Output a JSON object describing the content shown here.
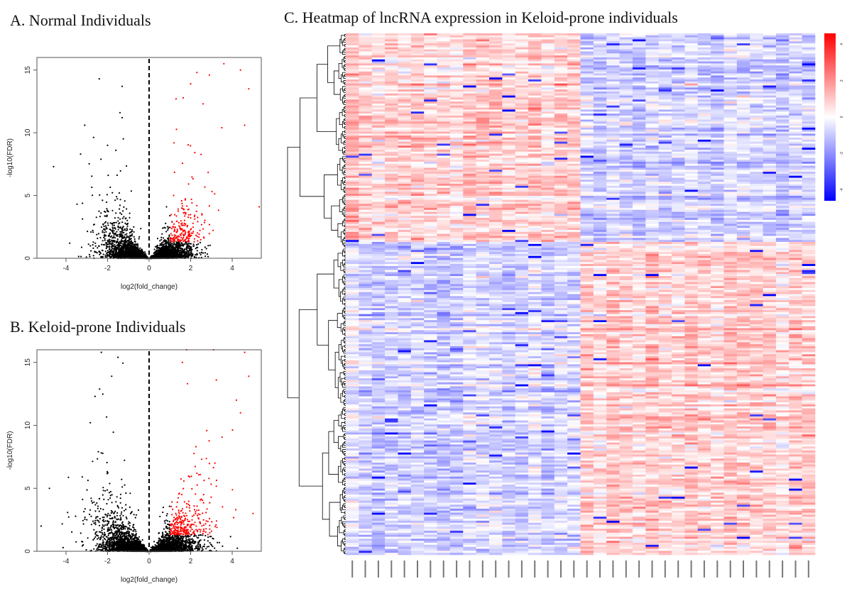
{
  "panels": {
    "a_title": "A.  Normal Individuals",
    "b_title": "B.  Keloid-prone Individuals",
    "c_title": "C.  Heatmap of lncRNA expression in Keloid-prone individuals"
  },
  "chart_data": [
    {
      "type": "scatter",
      "panel": "A",
      "title": "Normal Individuals",
      "xlabel": "log2(fold_change)",
      "ylabel": "-log10(FDR)",
      "xlim": [
        -5.4,
        5.4
      ],
      "ylim": [
        0,
        16
      ],
      "xticks": [
        "-4",
        "-2",
        "0",
        "2",
        "4"
      ],
      "yticks": [
        "0",
        "5",
        "10",
        "15"
      ],
      "vline": 0,
      "colors": {
        "not_significant": "#000000",
        "up_significant": "#ff0000"
      },
      "notable_points": [
        {
          "x": -2.4,
          "y": 14.3,
          "sig": false
        },
        {
          "x": -1.3,
          "y": 13.7,
          "sig": false
        },
        {
          "x": -1.4,
          "y": 11.6,
          "sig": false
        },
        {
          "x": -1.3,
          "y": 11.2,
          "sig": false
        },
        {
          "x": -3.1,
          "y": 10.6,
          "sig": false
        },
        {
          "x": -4.6,
          "y": 7.3,
          "sig": false
        },
        {
          "x": -2.0,
          "y": 9.0,
          "sig": false
        },
        {
          "x": -1.6,
          "y": 8.6,
          "sig": false
        },
        {
          "x": 3.6,
          "y": 15.5,
          "sig": true
        },
        {
          "x": 4.4,
          "y": 15.0,
          "sig": true
        },
        {
          "x": 2.3,
          "y": 14.8,
          "sig": true
        },
        {
          "x": 2.9,
          "y": 14.6,
          "sig": true
        },
        {
          "x": 4.8,
          "y": 13.5,
          "sig": true
        },
        {
          "x": 2.0,
          "y": 13.9,
          "sig": true
        },
        {
          "x": 1.3,
          "y": 12.7,
          "sig": true
        },
        {
          "x": 2.6,
          "y": 12.3,
          "sig": true
        },
        {
          "x": 4.6,
          "y": 10.6,
          "sig": true
        },
        {
          "x": 3.5,
          "y": 10.4,
          "sig": true
        },
        {
          "x": 5.3,
          "y": 4.1,
          "sig": true
        },
        {
          "x": 1.2,
          "y": 9.2,
          "sig": true
        }
      ]
    },
    {
      "type": "scatter",
      "panel": "B",
      "title": "Keloid-prone Individuals",
      "xlabel": "log2(fold_change)",
      "ylabel": "-log10(FDR)",
      "xlim": [
        -5.4,
        5.4
      ],
      "ylim": [
        0,
        16
      ],
      "xticks": [
        "-4",
        "-2",
        "0",
        "2",
        "4"
      ],
      "yticks": [
        "0",
        "5",
        "10",
        "15"
      ],
      "vline": 0,
      "colors": {
        "not_significant": "#000000",
        "up_significant": "#ff0000"
      },
      "notable_points": [
        {
          "x": -2.3,
          "y": 15.8,
          "sig": false
        },
        {
          "x": -1.5,
          "y": 15.4,
          "sig": false
        },
        {
          "x": -1.8,
          "y": 13.9,
          "sig": false
        },
        {
          "x": -2.6,
          "y": 12.3,
          "sig": false
        },
        {
          "x": -4.8,
          "y": 5.0,
          "sig": false
        },
        {
          "x": -5.2,
          "y": 2.0,
          "sig": false
        },
        {
          "x": 1.8,
          "y": 16.0,
          "sig": true
        },
        {
          "x": 3.1,
          "y": 16.0,
          "sig": true
        },
        {
          "x": 4.6,
          "y": 15.8,
          "sig": true
        },
        {
          "x": 4.8,
          "y": 13.9,
          "sig": true
        },
        {
          "x": 1.6,
          "y": 15.0,
          "sig": true
        },
        {
          "x": 4.2,
          "y": 12.0,
          "sig": true
        },
        {
          "x": 4.4,
          "y": 11.0,
          "sig": true
        },
        {
          "x": 5.0,
          "y": 3.0,
          "sig": true
        }
      ]
    },
    {
      "type": "heatmap",
      "panel": "C",
      "title": "Heatmap of lncRNA expression in Keloid-prone individuals",
      "columns": 36,
      "row_dendrogram": true,
      "colorscale": {
        "low": "#0000ff",
        "mid": "#ffffff",
        "high": "#ff0000"
      },
      "colorbar_ticks": [
        "4",
        "2",
        "0",
        "-2",
        "-4"
      ],
      "pattern": "upper cluster (~40% of rows) high in first 18 columns and low in last 18; lower cluster reversed"
    }
  ]
}
